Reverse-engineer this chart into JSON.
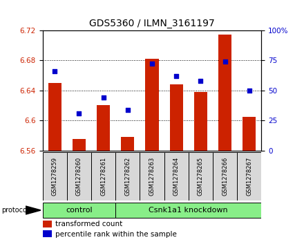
{
  "title": "GDS5360 / ILMN_3161197",
  "samples": [
    "GSM1278259",
    "GSM1278260",
    "GSM1278261",
    "GSM1278262",
    "GSM1278263",
    "GSM1278264",
    "GSM1278265",
    "GSM1278266",
    "GSM1278267"
  ],
  "bar_values": [
    6.65,
    6.575,
    6.62,
    6.578,
    6.682,
    6.648,
    6.638,
    6.714,
    6.605
  ],
  "bar_bottom": 6.56,
  "percentile_values": [
    66,
    31,
    44,
    34,
    72,
    62,
    58,
    74,
    50
  ],
  "ylim_left": [
    6.56,
    6.72
  ],
  "ylim_right": [
    0,
    100
  ],
  "yticks_left": [
    6.56,
    6.6,
    6.64,
    6.68,
    6.72
  ],
  "yticks_right": [
    0,
    25,
    50,
    75,
    100
  ],
  "bar_color": "#cc2200",
  "dot_color": "#0000cc",
  "control_samples": 3,
  "knockdown_samples": 6,
  "protocol_label": "protocol",
  "group_labels": [
    "control",
    "Csnk1a1 knockdown"
  ],
  "group_color": "#88ee88",
  "legend_items": [
    "transformed count",
    "percentile rank within the sample"
  ],
  "bg_color": "#d8d8d8",
  "plot_bg": "#ffffff",
  "title_fontsize": 10,
  "tick_fontsize": 7.5,
  "sample_fontsize": 6,
  "group_fontsize": 8,
  "legend_fontsize": 7.5
}
